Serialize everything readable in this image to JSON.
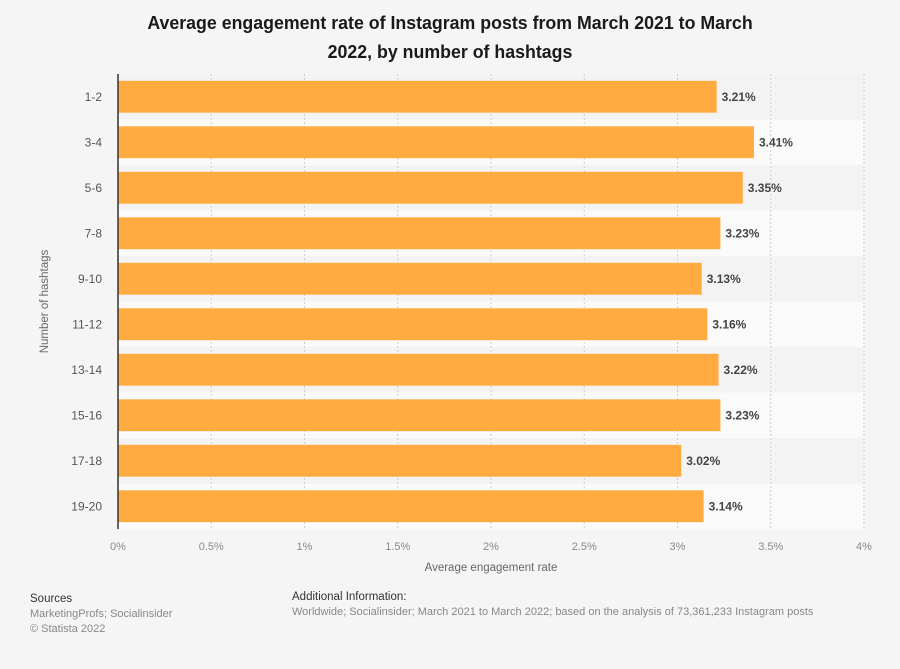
{
  "chart_data": {
    "type": "bar",
    "orientation": "horizontal",
    "title": "Average engagement rate of Instagram posts from March 2021 to March 2022, by number of hashtags",
    "title_lines": [
      "Average engagement rate of Instagram posts from March 2021 to March",
      "2022, by number of hashtags"
    ],
    "categories": [
      "1-2",
      "3-4",
      "5-6",
      "7-8",
      "9-10",
      "11-12",
      "13-14",
      "15-16",
      "17-18",
      "19-20"
    ],
    "values": [
      3.21,
      3.41,
      3.35,
      3.23,
      3.13,
      3.16,
      3.22,
      3.23,
      3.02,
      3.14
    ],
    "value_labels": [
      "3.21%",
      "3.41%",
      "3.35%",
      "3.23%",
      "3.13%",
      "3.16%",
      "3.22%",
      "3.23%",
      "3.02%",
      "3.14%"
    ],
    "xlabel": "Average engagement rate",
    "ylabel": "Number of hashtags",
    "xlim": [
      0,
      4
    ],
    "xticks": [
      0,
      0.5,
      1,
      1.5,
      2,
      2.5,
      3,
      3.5,
      4
    ],
    "xtick_labels": [
      "0%",
      "0.5%",
      "1%",
      "1.5%",
      "2%",
      "2.5%",
      "3%",
      "3.5%",
      "4%"
    ],
    "grid": true,
    "bar_color": "#ffab40",
    "legend": "none"
  },
  "footer": {
    "sources_heading": "Sources",
    "sources_text": "MarketingProfs; Socialinsider",
    "copyright": "© Statista 2022",
    "additional_heading": "Additional Information:",
    "additional_text": "Worldwide; Socialinsider; March 2021 to March 2022; based on the analysis of 73,361,233 Instagram posts"
  }
}
